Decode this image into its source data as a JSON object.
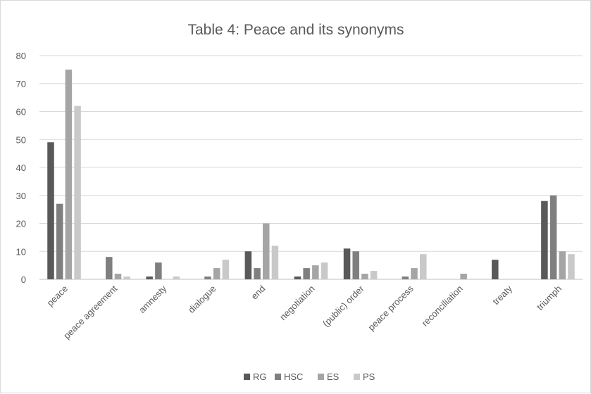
{
  "chart_data": {
    "type": "bar",
    "title": "Table 4: Peace and its synonyms",
    "xlabel": "",
    "ylabel": "",
    "ylim": [
      0,
      80
    ],
    "yticks": [
      "0",
      "10",
      "20",
      "30",
      "40",
      "50",
      "60",
      "70",
      "80"
    ],
    "grid": true,
    "legend_position": "bottom",
    "categories": [
      "peace",
      "peace agreement",
      "amnesty",
      "dialogue",
      "end",
      "negotiation",
      "(public) order",
      "peace process",
      "reconciliation",
      "treaty",
      "triumph"
    ],
    "series": [
      {
        "name": "RG",
        "color": "#595959",
        "values": [
          49,
          0,
          1,
          0,
          10,
          1,
          11,
          0,
          0,
          7,
          28
        ]
      },
      {
        "name": "HSC",
        "color": "#7f7f7f",
        "values": [
          27,
          8,
          6,
          1,
          4,
          4,
          10,
          1,
          0,
          0,
          30
        ]
      },
      {
        "name": "ES",
        "color": "#a5a5a5",
        "values": [
          75,
          2,
          0,
          4,
          20,
          5,
          2,
          4,
          2,
          0,
          10
        ]
      },
      {
        "name": "PS",
        "color": "#c9c9c9",
        "values": [
          62,
          1,
          1,
          7,
          12,
          6,
          3,
          9,
          0,
          0,
          9
        ]
      }
    ]
  }
}
